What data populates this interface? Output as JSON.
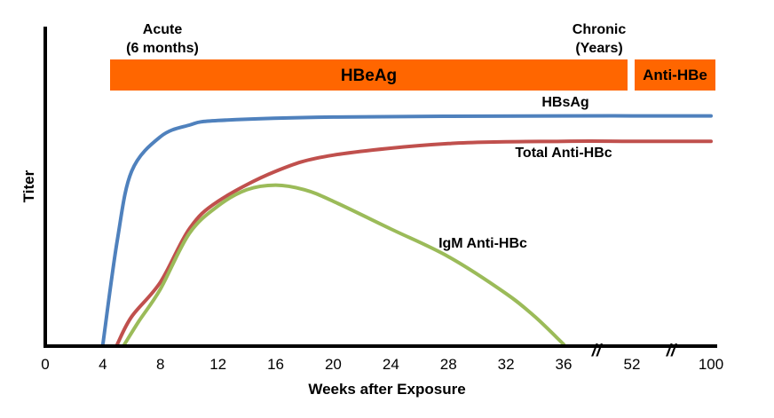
{
  "chart_data": {
    "type": "line",
    "title": "",
    "xlabel": "Weeks after Exposure",
    "ylabel": "Titer",
    "x_ticks": [
      "0",
      "4",
      "8",
      "12",
      "16",
      "20",
      "24",
      "28",
      "32",
      "36",
      "52",
      "100"
    ],
    "axis_breaks_after": [
      "36",
      "52"
    ],
    "phase_labels": {
      "acute_line1": "Acute",
      "acute_line2": "(6 months)",
      "chronic_line1": "Chronic",
      "chronic_line2": "(Years)"
    },
    "bands": [
      {
        "label": "HBeAg",
        "from_week": 4.5,
        "to_week": 52,
        "color": "#FF6600"
      },
      {
        "label": "Anti-HBe",
        "from_week": 52,
        "to_week": 100,
        "color": "#FF6600"
      }
    ],
    "series": [
      {
        "name": "HBsAg",
        "color": "#4F81BD",
        "points": [
          [
            4,
            0
          ],
          [
            5,
            0.45
          ],
          [
            6,
            0.75
          ],
          [
            8,
            0.9
          ],
          [
            10,
            0.95
          ],
          [
            12,
            0.97
          ],
          [
            20,
            0.985
          ],
          [
            36,
            0.99
          ],
          [
            52,
            0.99
          ],
          [
            100,
            0.99
          ]
        ]
      },
      {
        "name": "Total Anti-HBc",
        "color": "#C0504D",
        "points": [
          [
            5,
            0
          ],
          [
            6,
            0.12
          ],
          [
            8,
            0.27
          ],
          [
            10,
            0.5
          ],
          [
            12,
            0.62
          ],
          [
            16,
            0.75
          ],
          [
            20,
            0.82
          ],
          [
            28,
            0.87
          ],
          [
            36,
            0.88
          ],
          [
            52,
            0.88
          ],
          [
            100,
            0.88
          ]
        ]
      },
      {
        "name": "IgM Anti-HBc",
        "color": "#9BBB59",
        "points": [
          [
            5.5,
            0
          ],
          [
            6.5,
            0.1
          ],
          [
            8,
            0.24
          ],
          [
            10,
            0.48
          ],
          [
            12,
            0.6
          ],
          [
            14,
            0.67
          ],
          [
            16,
            0.69
          ],
          [
            18,
            0.67
          ],
          [
            20,
            0.62
          ],
          [
            24,
            0.5
          ],
          [
            28,
            0.38
          ],
          [
            32,
            0.22
          ],
          [
            34,
            0.12
          ],
          [
            36,
            0
          ]
        ]
      }
    ]
  }
}
